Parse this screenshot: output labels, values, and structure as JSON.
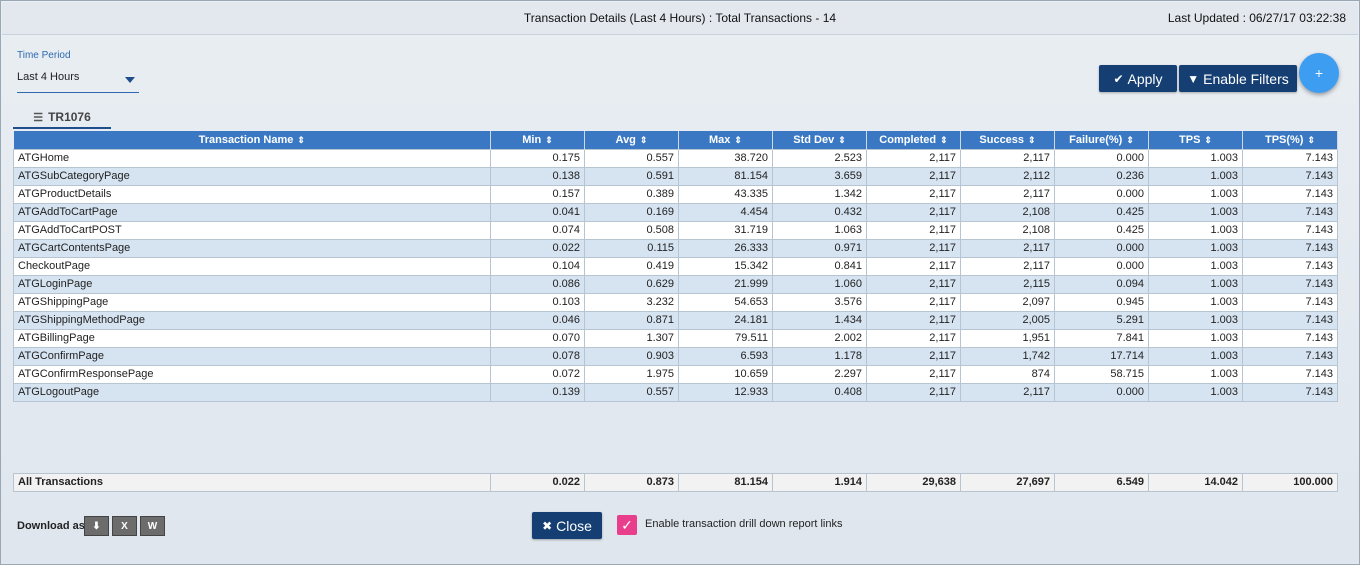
{
  "header": {
    "title": "Transaction Details (Last 4 Hours) : Total Transactions - 14",
    "last_updated": "Last Updated : 06/27/17 03:22:38"
  },
  "filters": {
    "time_period_label": "Time Period",
    "time_period_value": "Last 4 Hours",
    "apply_label": "Apply",
    "enable_filters_label": "Enable Filters",
    "add_icon": "plus-icon"
  },
  "tab": {
    "label": "TR1076"
  },
  "table": {
    "columns": [
      "Transaction Name",
      "Min",
      "Avg",
      "Max",
      "Std Dev",
      "Completed",
      "Success",
      "Failure(%)",
      "TPS",
      "TPS(%)"
    ],
    "rows": [
      [
        "ATGHome",
        "0.175",
        "0.557",
        "38.720",
        "2.523",
        "2,117",
        "2,117",
        "0.000",
        "1.003",
        "7.143"
      ],
      [
        "ATGSubCategoryPage",
        "0.138",
        "0.591",
        "81.154",
        "3.659",
        "2,117",
        "2,112",
        "0.236",
        "1.003",
        "7.143"
      ],
      [
        "ATGProductDetails",
        "0.157",
        "0.389",
        "43.335",
        "1.342",
        "2,117",
        "2,117",
        "0.000",
        "1.003",
        "7.143"
      ],
      [
        "ATGAddToCartPage",
        "0.041",
        "0.169",
        "4.454",
        "0.432",
        "2,117",
        "2,108",
        "0.425",
        "1.003",
        "7.143"
      ],
      [
        "ATGAddToCartPOST",
        "0.074",
        "0.508",
        "31.719",
        "1.063",
        "2,117",
        "2,108",
        "0.425",
        "1.003",
        "7.143"
      ],
      [
        "ATGCartContentsPage",
        "0.022",
        "0.115",
        "26.333",
        "0.971",
        "2,117",
        "2,117",
        "0.000",
        "1.003",
        "7.143"
      ],
      [
        "CheckoutPage",
        "0.104",
        "0.419",
        "15.342",
        "0.841",
        "2,117",
        "2,117",
        "0.000",
        "1.003",
        "7.143"
      ],
      [
        "ATGLoginPage",
        "0.086",
        "0.629",
        "21.999",
        "1.060",
        "2,117",
        "2,115",
        "0.094",
        "1.003",
        "7.143"
      ],
      [
        "ATGShippingPage",
        "0.103",
        "3.232",
        "54.653",
        "3.576",
        "2,117",
        "2,097",
        "0.945",
        "1.003",
        "7.143"
      ],
      [
        "ATGShippingMethodPage",
        "0.046",
        "0.871",
        "24.181",
        "1.434",
        "2,117",
        "2,005",
        "5.291",
        "1.003",
        "7.143"
      ],
      [
        "ATGBillingPage",
        "0.070",
        "1.307",
        "79.511",
        "2.002",
        "2,117",
        "1,951",
        "7.841",
        "1.003",
        "7.143"
      ],
      [
        "ATGConfirmPage",
        "0.078",
        "0.903",
        "6.593",
        "1.178",
        "2,117",
        "1,742",
        "17.714",
        "1.003",
        "7.143"
      ],
      [
        "ATGConfirmResponsePage",
        "0.072",
        "1.975",
        "10.659",
        "2.297",
        "2,117",
        "874",
        "58.715",
        "1.003",
        "7.143"
      ],
      [
        "ATGLogoutPage",
        "0.139",
        "0.557",
        "12.933",
        "0.408",
        "2,117",
        "2,117",
        "0.000",
        "1.003",
        "7.143"
      ]
    ],
    "total": [
      "All Transactions",
      "0.022",
      "0.873",
      "81.154",
      "1.914",
      "29,638",
      "27,697",
      "6.549",
      "14.042",
      "100.000"
    ]
  },
  "footer": {
    "download_label": "Download as",
    "download_icons": [
      "pdf-icon",
      "excel-icon",
      "word-icon"
    ],
    "close_label": "Close",
    "drilldown_label": "Enable transaction drill down report links",
    "drilldown_checked": true
  }
}
